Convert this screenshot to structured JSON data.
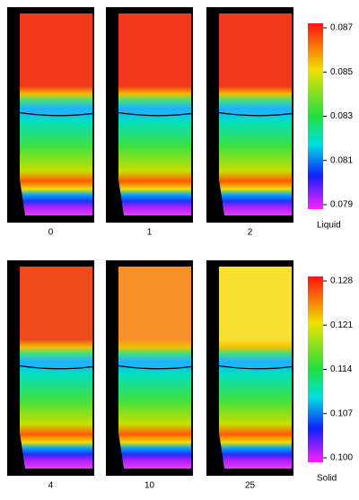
{
  "rows": [
    {
      "panels": [
        {
          "label": "0"
        },
        {
          "label": "1"
        },
        {
          "label": "2"
        }
      ],
      "colorbar": {
        "title": "Liquid",
        "ticks": [
          "0.087",
          "0.085",
          "0.083",
          "0.081",
          "0.079"
        ]
      }
    },
    {
      "panels": [
        {
          "label": "4"
        },
        {
          "label": "10"
        },
        {
          "label": "25"
        }
      ],
      "colorbar": {
        "title": "Solid",
        "ticks": [
          "0.128",
          "0.121",
          "0.114",
          "0.107",
          "0.100"
        ]
      }
    }
  ]
}
